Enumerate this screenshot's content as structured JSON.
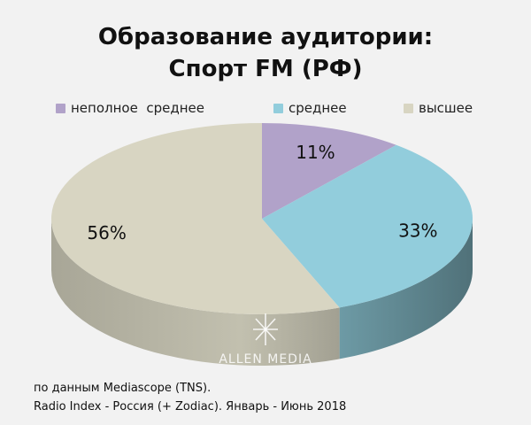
{
  "title_line1": "Образование аудитории:",
  "title_line2": "Спорт FM (РФ)",
  "chart_data": {
    "type": "pie",
    "title": "Образование аудитории: Спорт FM (РФ)",
    "legend_position": "top",
    "slices": [
      {
        "label": "неполное  среднее",
        "value": 11,
        "display": "11%",
        "color": "#b1a2c9"
      },
      {
        "label": "среднее",
        "value": 33,
        "display": "33%",
        "color": "#92cddc"
      },
      {
        "label": "высшее",
        "value": 56,
        "display": "56%",
        "color": "#d8d5c2"
      }
    ]
  },
  "watermark": "ALLEN MEDIA",
  "source_line1": "по данным Mediascope (TNS).",
  "source_line2": "Radio Index - Россия (+ Zodiac). Январь - Июнь 2018"
}
